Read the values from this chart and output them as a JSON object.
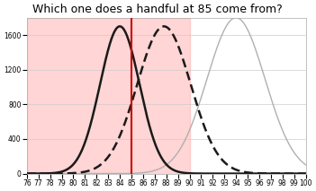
{
  "title": "Which one does a handful at 85 come from?",
  "x_min": 76,
  "x_max": 100,
  "y_min": 0,
  "y_max": 1800,
  "yticks": [
    0,
    400,
    800,
    1200,
    1600
  ],
  "xticks": [
    76,
    77,
    78,
    79,
    80,
    81,
    82,
    83,
    84,
    85,
    86,
    87,
    88,
    89,
    90,
    91,
    92,
    93,
    94,
    95,
    96,
    97,
    98,
    99,
    100
  ],
  "vertical_line_x": 85,
  "vertical_line_color": "#cc0000",
  "shade_xmin": 76,
  "shade_xmax": 90,
  "shade_color": "#ffb3b3",
  "shade_alpha": 0.55,
  "curve1": {
    "mean": 84.0,
    "std": 1.7,
    "peak": 1700,
    "color": "#1a1a1a",
    "linestyle": "solid",
    "linewidth": 1.8
  },
  "curve2": {
    "mean": 87.8,
    "std": 2.3,
    "peak": 1700,
    "color": "#1a1a1a",
    "linestyle": "dashed",
    "linewidth": 1.8,
    "dashes": [
      4,
      2
    ]
  },
  "curve3": {
    "mean": 94.0,
    "std": 2.5,
    "peak": 1800,
    "color": "#b0b0b0",
    "linestyle": "solid",
    "linewidth": 1.0
  },
  "background_color": "#ffffff",
  "title_fontsize": 9,
  "tick_fontsize": 5.5
}
